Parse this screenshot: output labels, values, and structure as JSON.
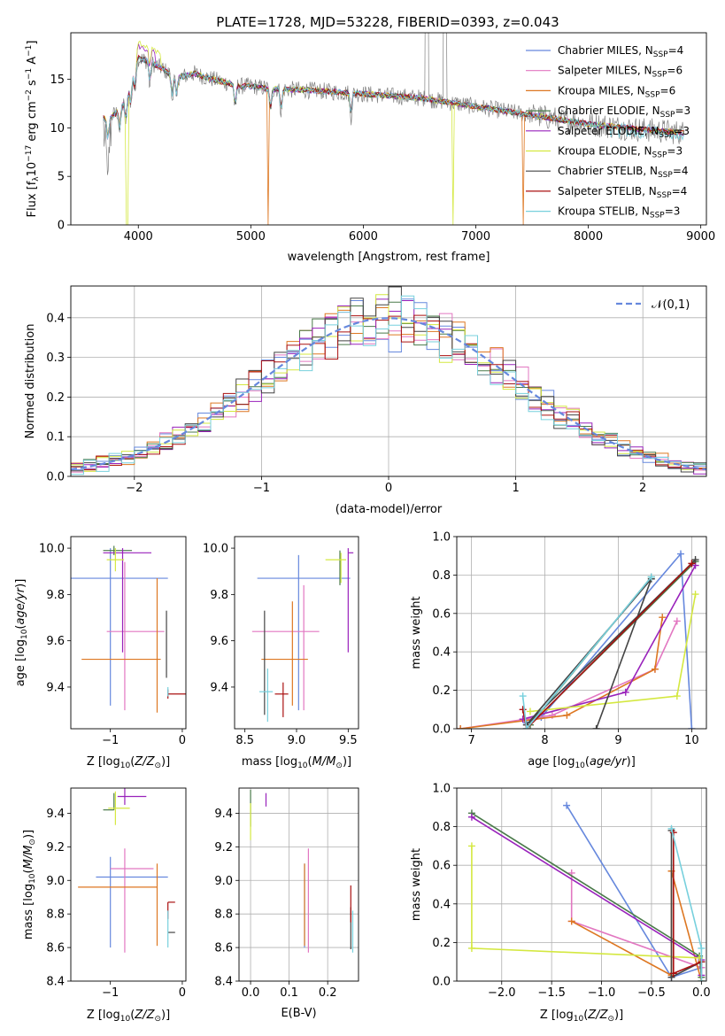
{
  "figure_title": "PLATE=1728, MJD=53228, FIBERID=0393, z=0.043",
  "colors": {
    "Chabrier MILES": "#6688dd",
    "Salpeter MILES": "#e277c1",
    "Kroupa MILES": "#dd7722",
    "Chabrier ELODIE": "#4a7a4a",
    "Salpeter ELODIE": "#9922bb",
    "Kroupa ELODIE": "#d4e840",
    "Chabrier STELIB": "#444444",
    "Salpeter STELIB": "#aa1111",
    "Kroupa STELIB": "#77d0dd",
    "data": "#808080",
    "gaussian": "#6688dd"
  },
  "chart_data": [
    {
      "id": "spectrum",
      "type": "line",
      "title": "PLATE=1728, MJD=53228, FIBERID=0393, z=0.043",
      "xlabel": "wavelength [Angstrom, rest frame]",
      "ylabel": "Flux [f_λ 10^-17 erg cm^-2 s^-1 A^-1]",
      "xlim": [
        3400,
        9050
      ],
      "ylim": [
        0,
        19.8
      ],
      "xticks": [
        4000,
        5000,
        6000,
        7000,
        8000,
        9000
      ],
      "yticks": [
        0,
        5,
        10,
        15
      ],
      "grid": false,
      "legend_position": "top-right",
      "legend": [
        "Chabrier MILES, N_SSP=4",
        "Salpeter MILES, N_SSP=6",
        "Kroupa MILES, N_SSP=6",
        "Chabrier ELODIE, N_SSP=3",
        "Salpeter ELODIE, N_SSP=3",
        "Kroupa ELODIE, N_SSP=3",
        "Chabrier STELIB, N_SSP=4",
        "Salpeter STELIB, N_SSP=4",
        "Kroupa STELIB, N_SSP=3"
      ],
      "continuum": {
        "wavelength": [
          3690,
          3720,
          3800,
          3900,
          3950,
          4000,
          4100,
          4200,
          4300,
          4400,
          4500,
          4600,
          4700,
          4800,
          4900,
          5000,
          5200,
          5500,
          6000,
          6500,
          7000,
          7500,
          8000,
          8500,
          8850
        ],
        "flux": [
          11.0,
          10.8,
          11.5,
          13.0,
          15.5,
          17.2,
          16.8,
          16.2,
          15.4,
          15.3,
          15.6,
          15.2,
          14.9,
          14.6,
          14.3,
          14.3,
          14.0,
          13.9,
          13.5,
          13.1,
          12.2,
          11.3,
          10.4,
          9.8,
          9.5
        ]
      },
      "model_drops": [
        {
          "series": "Kroupa ELODIE",
          "wavelength": 3900,
          "flux": 0
        },
        {
          "series": "Kroupa MILES",
          "wavelength": 5150,
          "flux": 0
        },
        {
          "series": "Kroupa ELODIE",
          "wavelength": 6800,
          "flux": 0
        },
        {
          "series": "Kroupa MILES",
          "wavelength": 7420,
          "flux": 0
        }
      ]
    },
    {
      "id": "residuals",
      "type": "line",
      "xlabel": "(data-model)/error",
      "ylabel": "Normed distribution",
      "xlim": [
        -2.5,
        2.5
      ],
      "ylim": [
        0,
        0.48
      ],
      "xticks": [
        -2,
        -1,
        0,
        1,
        2
      ],
      "yticks": [
        0.0,
        0.1,
        0.2,
        0.3,
        0.4
      ],
      "grid": true,
      "legend": [
        "𝒩(0,1)"
      ],
      "legend_position": "top-right",
      "gaussian": {
        "mu": 0,
        "sigma": 1
      }
    },
    {
      "id": "age-vs-z",
      "type": "scatter",
      "xlabel": "Z [log10(Z/Z⊙)]",
      "ylabel": "age [log10(age/yr)]",
      "xlim": [
        -1.55,
        0.05
      ],
      "ylim": [
        9.22,
        10.05
      ],
      "xticks": [
        -1,
        0
      ],
      "yticks": [
        9.4,
        9.6,
        9.8,
        10.0
      ],
      "grid": false,
      "points": [
        {
          "series": "Chabrier MILES",
          "x": -1.0,
          "xerr": [
            0.55,
            0.8
          ],
          "y": 9.87,
          "yerr": [
            0.55,
            0.13
          ]
        },
        {
          "series": "Salpeter MILES",
          "x": -0.8,
          "xerr": [
            0.25,
            0.55
          ],
          "y": 9.64,
          "yerr": [
            0.34,
            0.3
          ]
        },
        {
          "series": "Kroupa MILES",
          "x": -0.35,
          "xerr": [
            1.05,
            0.05
          ],
          "y": 9.52,
          "yerr": [
            0.23,
            0.35
          ]
        },
        {
          "series": "Chabrier ELODIE",
          "x": -0.95,
          "xerr": [
            0.15,
            0.25
          ],
          "y": 9.99,
          "yerr": [
            0.02,
            0.02
          ]
        },
        {
          "series": "Salpeter ELODIE",
          "x": -0.83,
          "xerr": [
            0.27,
            0.4
          ],
          "y": 9.98,
          "yerr": [
            0.43,
            0.02
          ]
        },
        {
          "series": "Kroupa ELODIE",
          "x": -0.93,
          "xerr": [
            0.12,
            0.12
          ],
          "y": 9.95,
          "yerr": [
            0.05,
            0.05
          ]
        },
        {
          "series": "Chabrier STELIB",
          "x": -0.22,
          "xerr": [
            0.0,
            0.0
          ],
          "y": 9.62,
          "yerr": [
            0.18,
            0.11
          ]
        },
        {
          "series": "Salpeter STELIB",
          "x": -0.2,
          "xerr": [
            0.0,
            0.3
          ],
          "y": 9.37,
          "yerr": [
            0.02,
            0.02
          ]
        },
        {
          "series": "Kroupa STELIB",
          "x": -0.2,
          "xerr": [
            0.0,
            0.0
          ],
          "y": 9.38,
          "yerr": [
            0.02,
            0.02
          ]
        }
      ]
    },
    {
      "id": "age-vs-mass",
      "type": "scatter",
      "xlabel": "mass [log10(M/M⊙)]",
      "xlim": [
        8.4,
        9.6
      ],
      "ylim": [
        9.22,
        10.05
      ],
      "xticks": [
        8.5,
        9.0,
        9.5
      ],
      "yticks": [
        9.4,
        9.6,
        9.8,
        10.0
      ],
      "grid": false,
      "points": [
        {
          "series": "Chabrier MILES",
          "x": 9.02,
          "xerr": [
            0.4,
            0.5
          ],
          "y": 9.87,
          "yerr": [
            0.57,
            0.1
          ]
        },
        {
          "series": "Salpeter MILES",
          "x": 9.07,
          "xerr": [
            0.5,
            0.15
          ],
          "y": 9.64,
          "yerr": [
            0.34,
            0.2
          ]
        },
        {
          "series": "Kroupa MILES",
          "x": 8.96,
          "xerr": [
            0.3,
            0.15
          ],
          "y": 9.52,
          "yerr": [
            0.2,
            0.25
          ]
        },
        {
          "series": "Chabrier ELODIE",
          "x": 9.42,
          "xerr": [
            0.0,
            0.0
          ],
          "y": 9.93,
          "yerr": [
            0.09,
            0.06
          ]
        },
        {
          "series": "Salpeter ELODIE",
          "x": 9.5,
          "xerr": [
            0.0,
            0.05
          ],
          "y": 9.98,
          "yerr": [
            0.43,
            0.02
          ]
        },
        {
          "series": "Kroupa ELODIE",
          "x": 9.43,
          "xerr": [
            0.15,
            0.05
          ],
          "y": 9.95,
          "yerr": [
            0.1,
            0.03
          ]
        },
        {
          "series": "Chabrier STELIB",
          "x": 8.69,
          "xerr": [
            0.0,
            0.0
          ],
          "y": 9.5,
          "yerr": [
            0.22,
            0.23
          ]
        },
        {
          "series": "Salpeter STELIB",
          "x": 8.87,
          "xerr": [
            0.08,
            0.05
          ],
          "y": 9.37,
          "yerr": [
            0.1,
            0.05
          ]
        },
        {
          "series": "Kroupa STELIB",
          "x": 8.72,
          "xerr": [
            0.08,
            0.05
          ],
          "y": 9.38,
          "yerr": [
            0.13,
            0.1
          ]
        }
      ]
    },
    {
      "id": "mass-weight-vs-age",
      "type": "line",
      "xlabel": "age [log10(age/yr)]",
      "ylabel": "mass weight",
      "xlim": [
        6.8,
        10.2
      ],
      "ylim": [
        0,
        1.0
      ],
      "xticks": [
        7,
        8,
        9,
        10
      ],
      "yticks": [
        0.0,
        0.2,
        0.4,
        0.6,
        0.8,
        1.0
      ],
      "grid": true,
      "series": [
        {
          "name": "Chabrier MILES",
          "x": [
            10.0,
            9.85,
            7.95,
            7.75
          ],
          "y": [
            0.0,
            0.91,
            0.06,
            0.03
          ]
        },
        {
          "name": "Salpeter MILES",
          "x": [
            6.85,
            8.1,
            9.5,
            9.8
          ],
          "y": [
            0.0,
            0.07,
            0.31,
            0.56
          ]
        },
        {
          "name": "Kroupa MILES",
          "x": [
            6.85,
            8.3,
            9.5,
            9.6
          ],
          "y": [
            0.0,
            0.07,
            0.31,
            0.58
          ]
        },
        {
          "name": "Chabrier ELODIE",
          "x": [
            9.45,
            7.8,
            10.05
          ],
          "y": [
            0.79,
            0.02,
            0.87
          ]
        },
        {
          "name": "Salpeter ELODIE",
          "x": [
            7.7,
            9.1,
            10.05
          ],
          "y": [
            0.05,
            0.19,
            0.85
          ]
        },
        {
          "name": "Kroupa ELODIE",
          "x": [
            7.8,
            9.8,
            10.05
          ],
          "y": [
            0.09,
            0.17,
            0.7
          ]
        },
        {
          "name": "Chabrier STELIB",
          "x": [
            8.7,
            9.45,
            7.75,
            10.05
          ],
          "y": [
            0.0,
            0.78,
            0.02,
            0.88
          ]
        },
        {
          "name": "Salpeter STELIB",
          "x": [
            7.7,
            7.75,
            10.0
          ],
          "y": [
            0.1,
            0.0,
            0.86
          ]
        },
        {
          "name": "Kroupa STELIB",
          "x": [
            7.7,
            7.75,
            9.45
          ],
          "y": [
            0.17,
            0.0,
            0.79
          ]
        }
      ]
    },
    {
      "id": "mass-vs-z",
      "type": "scatter",
      "xlabel": "Z [log10(Z/Z⊙)]",
      "ylabel": "mass [log10(M/M⊙)]",
      "xlim": [
        -1.55,
        0.05
      ],
      "ylim": [
        8.4,
        9.55
      ],
      "xticks": [
        -1,
        0
      ],
      "yticks": [
        8.4,
        8.6,
        8.8,
        9.0,
        9.2,
        9.4
      ],
      "grid": false,
      "points": [
        {
          "series": "Chabrier MILES",
          "x": -1.0,
          "xerr": [
            0.2,
            0.8
          ],
          "y": 9.02,
          "yerr": [
            0.42,
            0.12
          ]
        },
        {
          "series": "Salpeter MILES",
          "x": -0.8,
          "xerr": [
            0.2,
            0.4
          ],
          "y": 9.07,
          "yerr": [
            0.5,
            0.12
          ]
        },
        {
          "series": "Kroupa MILES",
          "x": -0.35,
          "xerr": [
            1.1,
            0.0
          ],
          "y": 8.96,
          "yerr": [
            0.35,
            0.14
          ]
        },
        {
          "series": "Chabrier ELODIE",
          "x": -0.95,
          "xerr": [
            0.15,
            0.0
          ],
          "y": 9.42,
          "yerr": [
            0.0,
            0.1
          ]
        },
        {
          "series": "Salpeter ELODIE",
          "x": -0.8,
          "xerr": [
            0.1,
            0.3
          ],
          "y": 9.5,
          "yerr": [
            0.05,
            0.05
          ]
        },
        {
          "series": "Kroupa ELODIE",
          "x": -0.93,
          "xerr": [
            0.1,
            0.2
          ],
          "y": 9.43,
          "yerr": [
            0.1,
            0.1
          ]
        },
        {
          "series": "Chabrier STELIB",
          "x": -0.2,
          "xerr": [
            0.0,
            0.1
          ],
          "y": 8.69,
          "yerr": [
            0.0,
            0.0
          ]
        },
        {
          "series": "Salpeter STELIB",
          "x": -0.2,
          "xerr": [
            0.0,
            0.1
          ],
          "y": 8.87,
          "yerr": [
            0.1,
            0.0
          ]
        },
        {
          "series": "Kroupa STELIB",
          "x": -0.2,
          "xerr": [
            0.0,
            0.0
          ],
          "y": 8.72,
          "yerr": [
            0.12,
            0.1
          ]
        }
      ]
    },
    {
      "id": "mass-vs-ebv",
      "type": "scatter",
      "xlabel": "E(B-V)",
      "xlim": [
        -0.03,
        0.28
      ],
      "ylim": [
        8.4,
        9.55
      ],
      "xticks": [
        0.0,
        0.1,
        0.2
      ],
      "yticks": [
        8.4,
        8.6,
        8.8,
        9.0,
        9.2,
        9.4
      ],
      "grid": true,
      "points": [
        {
          "series": "Chabrier MILES",
          "x": 0.14,
          "y": 9.02,
          "yerr": [
            0.42,
            0.08
          ]
        },
        {
          "series": "Salpeter MILES",
          "x": 0.15,
          "y": 9.07,
          "yerr": [
            0.5,
            0.12
          ]
        },
        {
          "series": "Kroupa MILES",
          "x": 0.14,
          "y": 8.96,
          "yerr": [
            0.35,
            0.14
          ]
        },
        {
          "series": "Chabrier ELODIE",
          "x": 0.0,
          "y": 9.42,
          "yerr": [
            0.1,
            0.12
          ]
        },
        {
          "series": "Salpeter ELODIE",
          "x": 0.04,
          "y": 9.44,
          "yerr": [
            0.0,
            0.08
          ]
        },
        {
          "series": "Kroupa ELODIE",
          "x": 0.0,
          "y": 9.36,
          "yerr": [
            0.12,
            0.1
          ]
        },
        {
          "series": "Chabrier STELIB",
          "x": 0.26,
          "y": 8.69,
          "yerr": [
            0.1,
            0.15
          ]
        },
        {
          "series": "Salpeter STELIB",
          "x": 0.26,
          "y": 8.85,
          "yerr": [
            0.1,
            0.12
          ]
        },
        {
          "series": "Kroupa STELIB",
          "x": 0.265,
          "y": 8.72,
          "yerr": [
            0.15,
            0.1
          ]
        }
      ]
    },
    {
      "id": "mass-weight-vs-z",
      "type": "line",
      "xlabel": "Z [log10(Z/Z⊙)]",
      "ylabel": "mass weight",
      "xlim": [
        -2.45,
        0.05
      ],
      "ylim": [
        0,
        1.0
      ],
      "xticks": [
        -2.0,
        -1.5,
        -1.0,
        -0.5,
        0.0
      ],
      "yticks": [
        0.0,
        0.2,
        0.4,
        0.6,
        0.8,
        1.0
      ],
      "grid": true,
      "series": [
        {
          "name": "Chabrier MILES",
          "x": [
            -1.35,
            -0.3,
            0.0
          ],
          "y": [
            0.91,
            0.02,
            0.07
          ]
        },
        {
          "name": "Salpeter MILES",
          "x": [
            -1.3,
            -1.3,
            0.0
          ],
          "y": [
            0.56,
            0.31,
            0.07
          ]
        },
        {
          "name": "Kroupa MILES",
          "x": [
            -1.3,
            -0.3,
            -0.3,
            0.0
          ],
          "y": [
            0.31,
            0.03,
            0.57,
            0.0
          ]
        },
        {
          "name": "Chabrier ELODIE",
          "x": [
            -2.3,
            -0.02,
            0.0
          ],
          "y": [
            0.87,
            0.13,
            0.02
          ]
        },
        {
          "name": "Salpeter ELODIE",
          "x": [
            -2.3,
            0.0,
            0.0
          ],
          "y": [
            0.85,
            0.11,
            0.03
          ]
        },
        {
          "name": "Kroupa ELODIE",
          "x": [
            -2.3,
            -2.3,
            -0.02
          ],
          "y": [
            0.7,
            0.17,
            0.12
          ]
        },
        {
          "name": "Chabrier STELIB",
          "x": [
            -0.3,
            -0.3,
            0.0
          ],
          "y": [
            0.78,
            0.02,
            0.1
          ]
        },
        {
          "name": "Salpeter STELIB",
          "x": [
            -0.28,
            -0.28,
            0.0
          ],
          "y": [
            0.77,
            0.04,
            0.1
          ]
        },
        {
          "name": "Kroupa STELIB",
          "x": [
            -0.3,
            0.0,
            0.0
          ],
          "y": [
            0.79,
            0.17,
            0.0
          ]
        }
      ]
    }
  ]
}
